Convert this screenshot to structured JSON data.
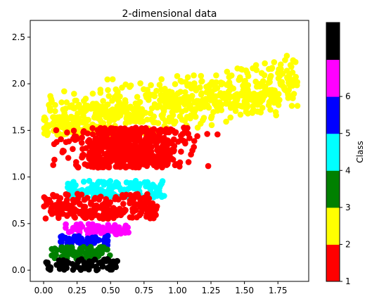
{
  "chart_data": {
    "type": "scatter",
    "title": "2-dimensional data",
    "xlabel": "",
    "ylabel": "",
    "xlim": [
      -0.1,
      1.98
    ],
    "ylim": [
      -0.12,
      2.68
    ],
    "xticks": [
      0.0,
      0.25,
      0.5,
      0.75,
      1.0,
      1.25,
      1.5,
      1.75
    ],
    "xtick_labels": [
      "0.00",
      "0.25",
      "0.50",
      "0.75",
      "1.00",
      "1.25",
      "1.50",
      "1.75"
    ],
    "yticks": [
      0.0,
      0.5,
      1.0,
      1.5,
      2.0,
      2.5
    ],
    "ytick_labels": [
      "0.0",
      "0.5",
      "1.0",
      "1.5",
      "2.0",
      "2.5"
    ],
    "grid": false,
    "colorbar": {
      "label": "Class",
      "ticks": [
        "1",
        "2",
        "3",
        "4",
        "5",
        "6"
      ],
      "colors": [
        "#ff0000",
        "#ffff00",
        "#008000",
        "#00ffff",
        "#0000ff",
        "#ff00ff",
        "#000000"
      ]
    },
    "series": [
      {
        "class": 0,
        "color": "#000000",
        "x_range": [
          0.0,
          0.55
        ],
        "y_range": [
          0.0,
          0.12
        ]
      },
      {
        "class": 3,
        "color": "#008000",
        "x_range": [
          0.06,
          0.5
        ],
        "y_range": [
          0.12,
          0.25
        ]
      },
      {
        "class": 5,
        "color": "#0000ff",
        "x_range": [
          0.12,
          0.48
        ],
        "y_range": [
          0.25,
          0.37
        ]
      },
      {
        "class": 6,
        "color": "#ff00ff",
        "x_range": [
          0.16,
          0.65
        ],
        "y_range": [
          0.38,
          0.5
        ]
      },
      {
        "class": 1,
        "color": "#ff0000",
        "x_range": [
          0.0,
          0.85
        ],
        "y_range": [
          0.55,
          0.82
        ]
      },
      {
        "class": 4,
        "color": "#00ffff",
        "x_range": [
          0.18,
          0.92
        ],
        "y_range": [
          0.78,
          0.96
        ]
      },
      {
        "class": 1,
        "color": "#ff0000",
        "x_range": [
          0.0,
          1.65
        ],
        "y_range": [
          1.0,
          1.55
        ]
      },
      {
        "class": 2,
        "color": "#ffff00",
        "x_range": [
          0.0,
          1.9
        ],
        "y_range": [
          1.45,
          2.56
        ]
      }
    ]
  }
}
